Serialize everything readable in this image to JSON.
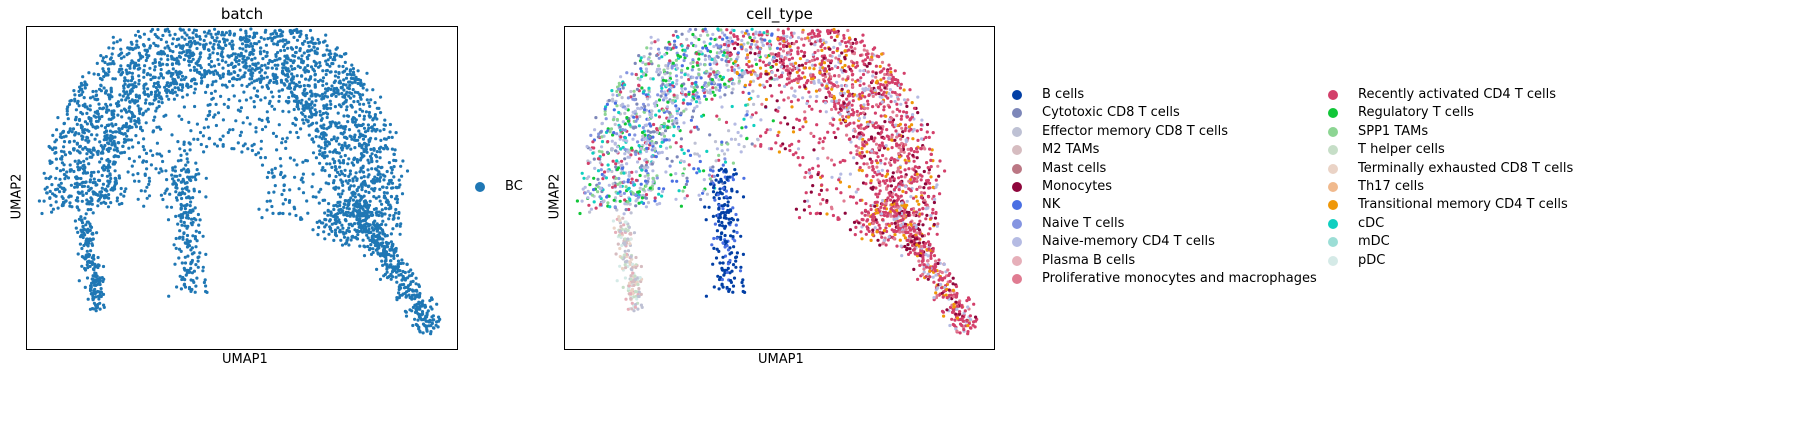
{
  "chart_data": [
    {
      "type": "scatter",
      "title": "batch",
      "xlabel": "UMAP1",
      "ylabel": "UMAP2",
      "grid": false,
      "ticks": false,
      "legend": {
        "placement": "right",
        "entries": [
          {
            "label": "BC",
            "color": "#1f77b4"
          }
        ]
      },
      "series": [
        {
          "name": "BC",
          "color": "#1f77b4"
        }
      ]
    },
    {
      "type": "scatter",
      "title": "cell_type",
      "xlabel": "UMAP1",
      "ylabel": "UMAP2",
      "grid": false,
      "ticks": false,
      "legend": {
        "placement": "right",
        "columns": 2,
        "entries": [
          {
            "label": "B cells",
            "color": "#023fa5"
          },
          {
            "label": "Cytotoxic CD8 T cells",
            "color": "#7d87b9"
          },
          {
            "label": "Effector memory CD8 T cells",
            "color": "#bec1d4"
          },
          {
            "label": "M2 TAMs",
            "color": "#d6bcc0"
          },
          {
            "label": "Mast cells",
            "color": "#bb7784"
          },
          {
            "label": "Monocytes",
            "color": "#8e063b"
          },
          {
            "label": "NK",
            "color": "#4a6fe3"
          },
          {
            "label": "Naive T cells",
            "color": "#8595e1"
          },
          {
            "label": "Naive-memory CD4 T cells",
            "color": "#b5bbe3"
          },
          {
            "label": "Plasma B cells",
            "color": "#e6afb9"
          },
          {
            "label": "Proliferative monocytes and macrophages",
            "color": "#e07b91"
          },
          {
            "label": "Recently activated CD4 T cells",
            "color": "#d33f6a"
          },
          {
            "label": "Regulatory T cells",
            "color": "#11c638"
          },
          {
            "label": "SPP1 TAMs",
            "color": "#8dd593"
          },
          {
            "label": "T helper cells",
            "color": "#c6dec7"
          },
          {
            "label": "Terminally exhausted CD8 T cells",
            "color": "#ead3c6"
          },
          {
            "label": "Th17 cells",
            "color": "#f0b98d"
          },
          {
            "label": "Transitional memory CD4 T cells",
            "color": "#ef9708"
          },
          {
            "label": "cDC",
            "color": "#0fcfc0"
          },
          {
            "label": "mDC",
            "color": "#9cded6"
          },
          {
            "label": "pDC",
            "color": "#d5eae7"
          }
        ]
      }
    }
  ]
}
